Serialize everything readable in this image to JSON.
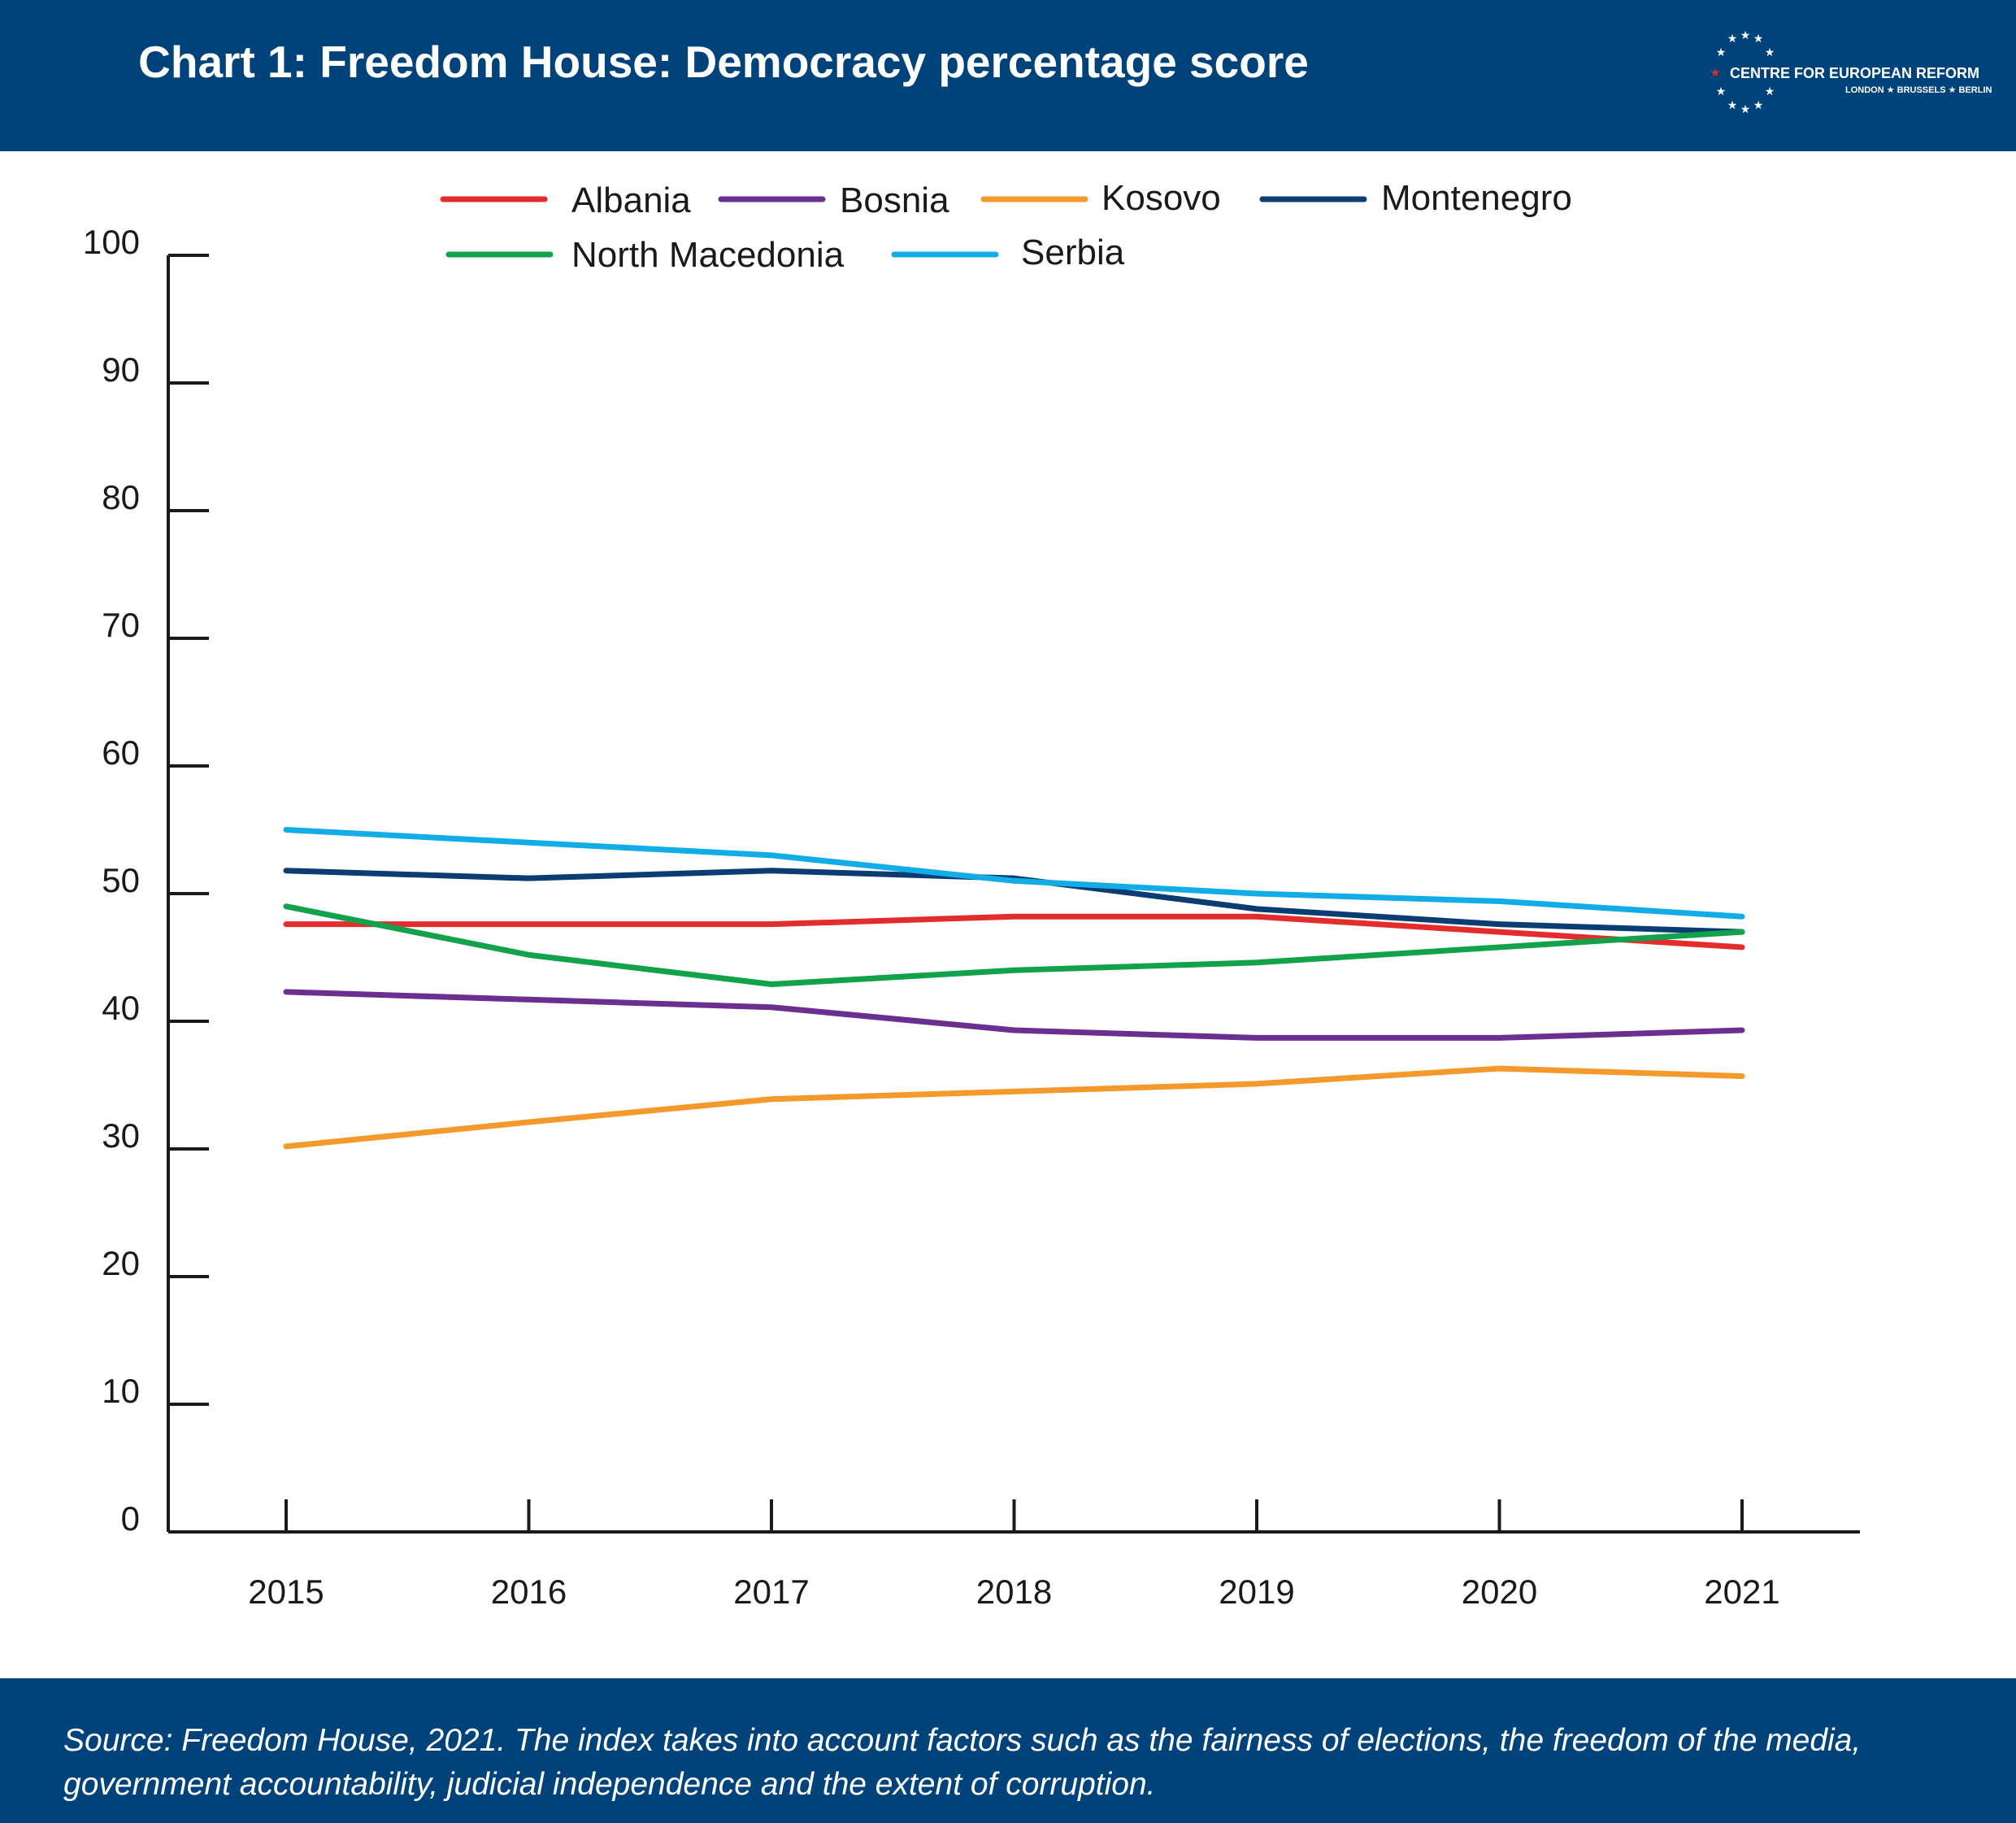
{
  "header": {
    "title": "Chart 1: Freedom House: Democracy percentage score",
    "logo": {
      "name": "CENTRE FOR EUROPEAN REFORM",
      "cities": "LONDON ★ BRUSSELS ★ BERLIN"
    }
  },
  "footer": {
    "source": "Source: Freedom House, 2021. The index takes into account factors such as the fairness of elections, the freedom of the media, government accountability, judicial independence and the extent of corruption."
  },
  "chart_data": {
    "type": "line",
    "title": "Chart 1: Freedom House: Democracy percentage score",
    "xlabel": "",
    "ylabel": "",
    "x": [
      "2015",
      "2016",
      "2017",
      "2018",
      "2019",
      "2020",
      "2021"
    ],
    "ylim": [
      0,
      100
    ],
    "yticks": [
      0,
      10,
      20,
      30,
      40,
      50,
      60,
      70,
      80,
      90,
      100
    ],
    "grid": false,
    "legend_position": "top",
    "series": [
      {
        "name": "Albania",
        "color": "#e32d2d",
        "values": [
          47.6,
          47.6,
          47.6,
          48.2,
          48.2,
          47.0,
          45.8
        ]
      },
      {
        "name": "Bosnia",
        "color": "#6b2f8f",
        "values": [
          42.3,
          41.7,
          41.1,
          39.3,
          38.7,
          38.7,
          39.3
        ]
      },
      {
        "name": "Kosovo",
        "color": "#f49a2d",
        "values": [
          30.2,
          32.1,
          33.9,
          34.5,
          35.1,
          36.3,
          35.7
        ]
      },
      {
        "name": "Montenegro",
        "color": "#0b3d73",
        "values": [
          51.8,
          51.2,
          51.8,
          51.2,
          48.8,
          47.6,
          47.0
        ]
      },
      {
        "name": "North Macedonia",
        "color": "#12a24b",
        "values": [
          49.0,
          45.2,
          42.9,
          44.0,
          44.6,
          45.8,
          47.0
        ]
      },
      {
        "name": "Serbia",
        "color": "#12ace6",
        "values": [
          55.0,
          54.0,
          53.0,
          51.0,
          50.0,
          49.4,
          48.2
        ]
      }
    ]
  }
}
